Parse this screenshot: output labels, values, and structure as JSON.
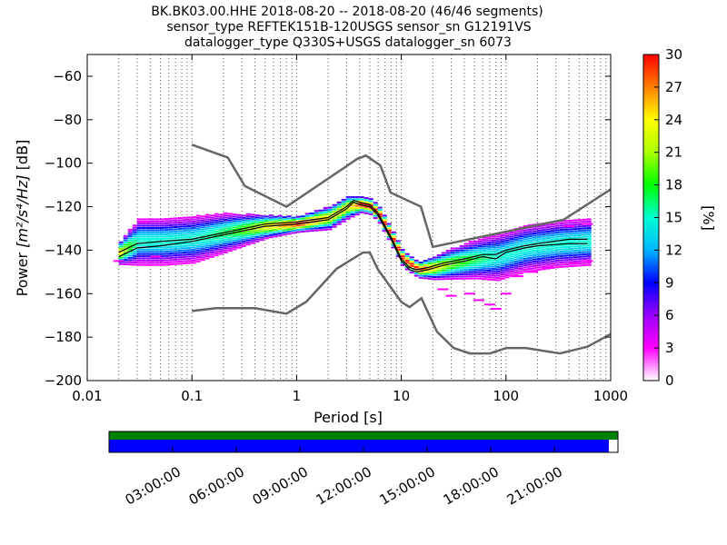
{
  "chart_data": {
    "type": "heatmap",
    "title_lines": [
      "BK.BK03.00.HHE   2018-08-20 -- 2018-08-20  (46/46 segments)",
      "sensor_type REFTEK151B-120USGS sensor_sn G12191VS",
      "datalogger_type Q330S+USGS datalogger_sn 6073"
    ],
    "xlabel": "Period [s]",
    "ylabel_prefix": "Power ",
    "ylabel_units": "[m²/s⁴/Hz]",
    "ylabel_suffix": " [dB]",
    "x_scale": "log",
    "xlim": [
      0.01,
      1000
    ],
    "ylim": [
      -200,
      -50
    ],
    "x_ticks": [
      0.01,
      0.1,
      1,
      10,
      100,
      1000
    ],
    "x_tick_labels": [
      "0.01",
      "0.1",
      "1",
      "10",
      "100",
      "1000"
    ],
    "y_ticks": [
      -200,
      -180,
      -160,
      -140,
      -120,
      -100,
      -80,
      -60
    ],
    "y_tick_labels": [
      "−200",
      "−180",
      "−160",
      "−140",
      "−120",
      "−100",
      "−80",
      "−60"
    ],
    "grid": "dotted vertical",
    "colorbar": {
      "label": "[%]",
      "min": 0,
      "max": 30,
      "ticks": [
        0,
        3,
        6,
        9,
        12,
        15,
        18,
        21,
        24,
        27,
        30
      ],
      "colors": [
        "#ffffff",
        "#ff00ff",
        "#9900ff",
        "#0000ff",
        "#00b4ff",
        "#00ffd2",
        "#00ff00",
        "#aaff00",
        "#ffff00",
        "#ff8000",
        "#ff0000"
      ]
    },
    "nhnm": {
      "name": "New High Noise Model",
      "x": [
        0.1,
        0.22,
        0.32,
        0.8,
        3.8,
        4.6,
        6.3,
        7.9,
        15.4,
        20,
        354.8,
        1000
      ],
      "y": [
        -91.5,
        -97.4,
        -110.5,
        -120,
        -98,
        -96.5,
        -101,
        -113.5,
        -120,
        -138.5,
        -126,
        -112
      ]
    },
    "nlnm": {
      "name": "New Low Noise Model",
      "x": [
        0.1,
        0.17,
        0.4,
        0.8,
        1.24,
        2.4,
        4.3,
        5,
        6,
        10,
        12,
        15.6,
        21.9,
        31.6,
        45,
        70,
        101,
        154,
        328,
        600,
        1000
      ],
      "y": [
        -168,
        -166.7,
        -166.7,
        -169.2,
        -163.7,
        -148.6,
        -141.1,
        -141.1,
        -149,
        -163.8,
        -166.2,
        -162.1,
        -177.5,
        -185,
        -187.5,
        -187.5,
        -185,
        -185,
        -187.5,
        -184.4,
        -178.6
      ]
    },
    "mode_curve": {
      "x": [
        0.02,
        0.03,
        0.05,
        0.1,
        0.2,
        0.5,
        1,
        2,
        3,
        3.5,
        4,
        5,
        6,
        8,
        10,
        12,
        14,
        18,
        25,
        40,
        60,
        80,
        100,
        150,
        200,
        400,
        600
      ],
      "y": [
        -143,
        -139,
        -138,
        -136,
        -133,
        -129,
        -128,
        -126,
        -121,
        -118,
        -119,
        -120,
        -124,
        -135,
        -145,
        -149,
        -150,
        -149,
        -147,
        -145,
        -143,
        -144,
        -141,
        -139,
        -138,
        -137,
        -137
      ]
    },
    "mean_curve": {
      "x": [
        0.02,
        0.03,
        0.05,
        0.1,
        0.2,
        0.5,
        1,
        2,
        3,
        3.5,
        4,
        5,
        6,
        8,
        10,
        12,
        14,
        18,
        25,
        40,
        60,
        80,
        100,
        150,
        200,
        400,
        600
      ],
      "y": [
        -141,
        -137,
        -136,
        -135,
        -132,
        -128,
        -127,
        -125,
        -120,
        -117,
        -118,
        -119,
        -123,
        -134,
        -144,
        -148,
        -149,
        -148,
        -146,
        -144,
        -142,
        -142,
        -140,
        -138,
        -137,
        -135,
        -135
      ]
    },
    "density_bands": [
      {
        "x": 0.02,
        "center": -141,
        "spread": 3
      },
      {
        "x": 0.03,
        "center": -136,
        "spread": 6
      },
      {
        "x": 0.05,
        "center": -136,
        "spread": 6
      },
      {
        "x": 0.1,
        "center": -135,
        "spread": 6
      },
      {
        "x": 0.2,
        "center": -132,
        "spread": 5
      },
      {
        "x": 0.5,
        "center": -129,
        "spread": 3
      },
      {
        "x": 1,
        "center": -128,
        "spread": 2
      },
      {
        "x": 2,
        "center": -125,
        "spread": 3
      },
      {
        "x": 3,
        "center": -120,
        "spread": 3
      },
      {
        "x": 4,
        "center": -119,
        "spread": 2
      },
      {
        "x": 5,
        "center": -120,
        "spread": 2
      },
      {
        "x": 6,
        "center": -124,
        "spread": 2
      },
      {
        "x": 8,
        "center": -135,
        "spread": 2
      },
      {
        "x": 10,
        "center": -144,
        "spread": 2
      },
      {
        "x": 14,
        "center": -149,
        "spread": 2
      },
      {
        "x": 20,
        "center": -148,
        "spread": 3
      },
      {
        "x": 30,
        "center": -146,
        "spread": 4
      },
      {
        "x": 50,
        "center": -144,
        "spread": 5
      },
      {
        "x": 80,
        "center": -143,
        "spread": 6
      },
      {
        "x": 150,
        "center": -139,
        "spread": 6
      },
      {
        "x": 300,
        "center": -137,
        "spread": 6
      },
      {
        "x": 600,
        "center": -136,
        "spread": 6
      }
    ],
    "outliers": [
      {
        "x": 0.02,
        "y": -145
      },
      {
        "x": 0.035,
        "y": -127
      },
      {
        "x": 0.045,
        "y": -143
      },
      {
        "x": 25,
        "y": -158
      },
      {
        "x": 30,
        "y": -161
      },
      {
        "x": 45,
        "y": -160
      },
      {
        "x": 55,
        "y": -163
      },
      {
        "x": 70,
        "y": -165
      },
      {
        "x": 80,
        "y": -167
      },
      {
        "x": 100,
        "y": -160
      },
      {
        "x": 130,
        "y": -152
      },
      {
        "x": 180,
        "y": -150
      },
      {
        "x": 250,
        "y": -148
      },
      {
        "x": 450,
        "y": -146
      },
      {
        "x": 600,
        "y": -145
      },
      {
        "x": 600,
        "y": -128
      },
      {
        "x": 400,
        "y": -129
      }
    ]
  },
  "timeline": {
    "labels": [
      "03:00:00",
      "06:00:00",
      "09:00:00",
      "12:00:00",
      "15:00:00",
      "18:00:00",
      "21:00:00"
    ],
    "data_coverage_fraction": 0.982,
    "colors": {
      "used": "#008000",
      "data": "#0000ff"
    }
  }
}
